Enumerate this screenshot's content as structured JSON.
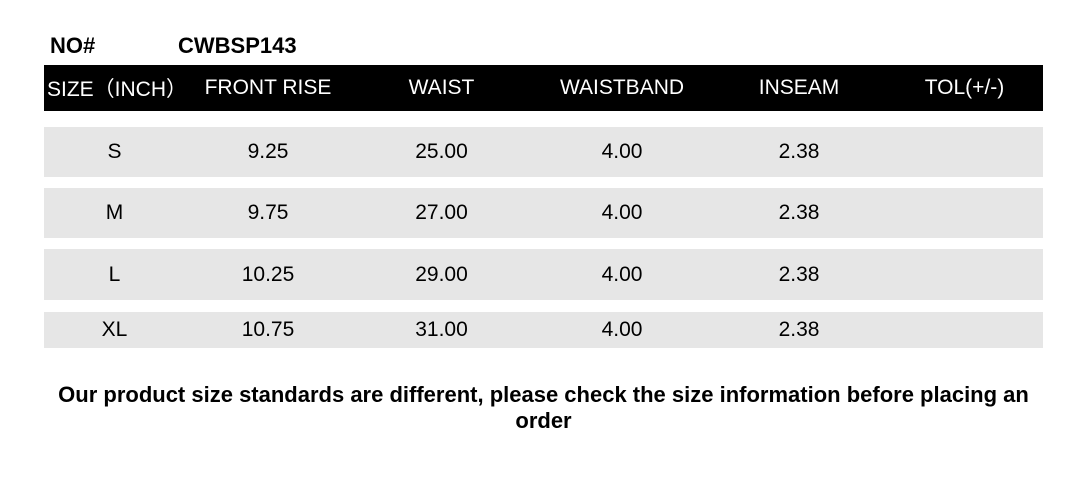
{
  "product": {
    "no_label": "NO#",
    "no_value": "CWBSP143"
  },
  "table": {
    "columns": [
      "SIZE（INCH）",
      "FRONT RISE",
      "WAIST",
      "WAISTBAND",
      "INSEAM",
      "TOL(+/-)"
    ],
    "rows": [
      {
        "size": "S",
        "front_rise": "9.25",
        "waist": "25.00",
        "waistband": "4.00",
        "inseam": "2.38",
        "tol": ""
      },
      {
        "size": "M",
        "front_rise": "9.75",
        "waist": "27.00",
        "waistband": "4.00",
        "inseam": "2.38",
        "tol": ""
      },
      {
        "size": "L",
        "front_rise": "10.25",
        "waist": "29.00",
        "waistband": "4.00",
        "inseam": "2.38",
        "tol": ""
      },
      {
        "size": "XL",
        "front_rise": "10.75",
        "waist": "31.00",
        "waistband": "4.00",
        "inseam": "2.38",
        "tol": ""
      }
    ],
    "colors": {
      "header_bg": "#000000",
      "header_text": "#ffffff",
      "row_bg": "#e6e6e6",
      "row_text": "#000000",
      "page_bg": "#ffffff"
    }
  },
  "note": {
    "text": "Our product size standards are different, please check the size information before placing an order"
  },
  "chart_data": {
    "type": "table",
    "title": "NO# CWBSP143",
    "columns": [
      "SIZE（INCH）",
      "FRONT RISE",
      "WAIST",
      "WAISTBAND",
      "INSEAM",
      "TOL(+/-)"
    ],
    "rows": [
      [
        "S",
        9.25,
        25.0,
        4.0,
        2.38,
        null
      ],
      [
        "M",
        9.75,
        27.0,
        4.0,
        2.38,
        null
      ],
      [
        "L",
        10.25,
        29.0,
        4.0,
        2.38,
        null
      ],
      [
        "XL",
        10.75,
        31.0,
        4.0,
        2.38,
        null
      ]
    ],
    "footnote": "Our product size standards are different, please check the size information before placing an order",
    "layout_hints": {
      "header_style": "black-bg-white-text",
      "row_style": "light-gray-bands-with-white-gaps",
      "units": "inches"
    }
  }
}
